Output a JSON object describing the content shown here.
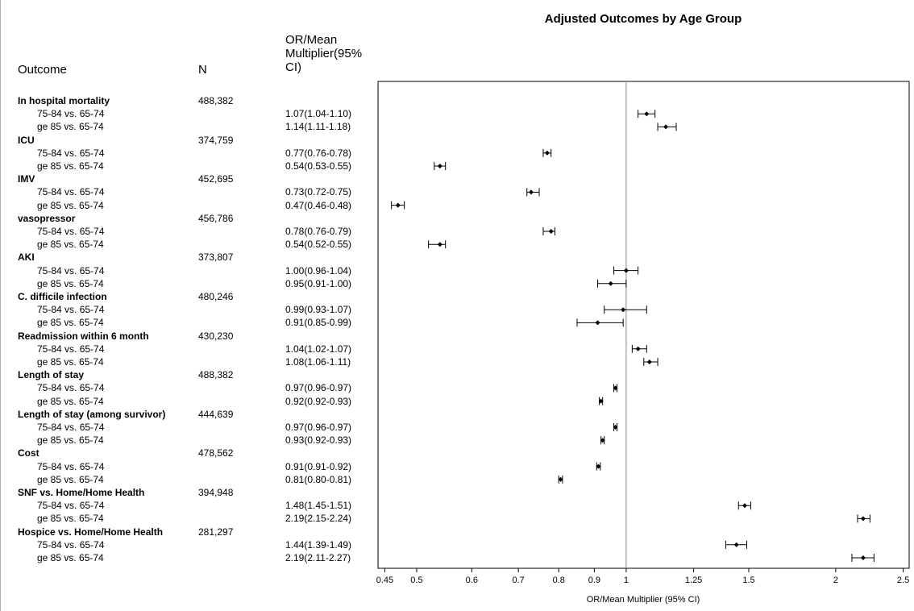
{
  "chart_data": {
    "type": "forest",
    "title": "Adjusted Outcomes by Age Group",
    "columns": {
      "outcome": "Outcome",
      "n": "N",
      "estimate_lines": [
        "OR/Mean",
        "Multiplier(95%",
        "CI)"
      ]
    },
    "xlabel": "OR/Mean Multiplier (95% CI)",
    "x_scale": "log",
    "xlim": [
      0.44,
      2.55
    ],
    "x_ticks": [
      0.45,
      0.5,
      0.6,
      0.7,
      0.8,
      0.9,
      1,
      1.25,
      1.5,
      2,
      2.5
    ],
    "x_tick_labels": [
      "0.45",
      "0.5",
      "0.6",
      "0.7",
      "0.8",
      "0.9",
      "1",
      "1.25",
      "1.5",
      "2",
      "2.5"
    ],
    "reference_line": 1,
    "groups": [
      {
        "name": "In hospital mortality",
        "n": "488,382",
        "rows": [
          {
            "label": "75-84 vs. 65-74",
            "text": "1.07(1.04-1.10)",
            "est": 1.07,
            "lo": 1.04,
            "hi": 1.1
          },
          {
            "label": "ge 85 vs. 65-74",
            "text": "1.14(1.11-1.18)",
            "est": 1.14,
            "lo": 1.11,
            "hi": 1.18
          }
        ]
      },
      {
        "name": "ICU",
        "n": "374,759",
        "rows": [
          {
            "label": "75-84 vs. 65-74",
            "text": "0.77(0.76-0.78)",
            "est": 0.77,
            "lo": 0.76,
            "hi": 0.78
          },
          {
            "label": "ge 85 vs. 65-74",
            "text": "0.54(0.53-0.55)",
            "est": 0.54,
            "lo": 0.53,
            "hi": 0.55
          }
        ]
      },
      {
        "name": "IMV",
        "n": "452,695",
        "rows": [
          {
            "label": "75-84 vs. 65-74",
            "text": "0.73(0.72-0.75)",
            "est": 0.73,
            "lo": 0.72,
            "hi": 0.75
          },
          {
            "label": "ge 85 vs. 65-74",
            "text": "0.47(0.46-0.48)",
            "est": 0.47,
            "lo": 0.46,
            "hi": 0.48
          }
        ]
      },
      {
        "name": "vasopressor",
        "n": "456,786",
        "rows": [
          {
            "label": "75-84 vs. 65-74",
            "text": "0.78(0.76-0.79)",
            "est": 0.78,
            "lo": 0.76,
            "hi": 0.79
          },
          {
            "label": "ge 85 vs. 65-74",
            "text": "0.54(0.52-0.55)",
            "est": 0.54,
            "lo": 0.52,
            "hi": 0.55
          }
        ]
      },
      {
        "name": "AKI",
        "n": "373,807",
        "rows": [
          {
            "label": "75-84 vs. 65-74",
            "text": "1.00(0.96-1.04)",
            "est": 1.0,
            "lo": 0.96,
            "hi": 1.04
          },
          {
            "label": "ge 85 vs. 65-74",
            "text": "0.95(0.91-1.00)",
            "est": 0.95,
            "lo": 0.91,
            "hi": 1.0
          }
        ]
      },
      {
        "name": "C. difficile infection",
        "n": "480,246",
        "rows": [
          {
            "label": "75-84 vs. 65-74",
            "text": "0.99(0.93-1.07)",
            "est": 0.99,
            "lo": 0.93,
            "hi": 1.07
          },
          {
            "label": "ge 85 vs. 65-74",
            "text": "0.91(0.85-0.99)",
            "est": 0.91,
            "lo": 0.85,
            "hi": 0.99
          }
        ]
      },
      {
        "name": "Readmission within 6 month",
        "n": "430,230",
        "rows": [
          {
            "label": "75-84 vs. 65-74",
            "text": "1.04(1.02-1.07)",
            "est": 1.04,
            "lo": 1.02,
            "hi": 1.07
          },
          {
            "label": "ge 85 vs. 65-74",
            "text": "1.08(1.06-1.11)",
            "est": 1.08,
            "lo": 1.06,
            "hi": 1.11
          }
        ]
      },
      {
        "name": "Length of stay",
        "n": "488,382",
        "rows": [
          {
            "label": "75-84 vs. 65-74",
            "text": "0.97(0.96-0.97)",
            "est": 0.965,
            "lo": 0.96,
            "hi": 0.97
          },
          {
            "label": "ge 85 vs. 65-74",
            "text": "0.92(0.92-0.93)",
            "est": 0.92,
            "lo": 0.915,
            "hi": 0.925
          }
        ]
      },
      {
        "name": "Length of stay (among survivor)",
        "n": "444,639",
        "rows": [
          {
            "label": "75-84 vs. 65-74",
            "text": "0.97(0.96-0.97)",
            "est": 0.965,
            "lo": 0.96,
            "hi": 0.97
          },
          {
            "label": "ge 85 vs. 65-74",
            "text": "0.93(0.92-0.93)",
            "est": 0.925,
            "lo": 0.92,
            "hi": 0.93
          }
        ]
      },
      {
        "name": "Cost",
        "n": "478,562",
        "rows": [
          {
            "label": "75-84 vs. 65-74",
            "text": "0.91(0.91-0.92)",
            "est": 0.912,
            "lo": 0.907,
            "hi": 0.918
          },
          {
            "label": "ge 85 vs. 65-74",
            "text": "0.81(0.80-0.81)",
            "est": 0.805,
            "lo": 0.8,
            "hi": 0.81
          }
        ]
      },
      {
        "name": "SNF vs. Home/Home Health",
        "n": "394,948",
        "rows": [
          {
            "label": "75-84 vs. 65-74",
            "text": "1.48(1.45-1.51)",
            "est": 1.48,
            "lo": 1.45,
            "hi": 1.51
          },
          {
            "label": "ge 85 vs. 65-74",
            "text": "2.19(2.15-2.24)",
            "est": 2.19,
            "lo": 2.15,
            "hi": 2.24
          }
        ]
      },
      {
        "name": "Hospice vs. Home/Home Health",
        "n": "281,297",
        "rows": [
          {
            "label": "75-84 vs. 65-74",
            "text": "1.44(1.39-1.49)",
            "est": 1.44,
            "lo": 1.39,
            "hi": 1.49
          },
          {
            "label": "ge 85 vs. 65-74",
            "text": "2.19(2.11-2.27)",
            "est": 2.19,
            "lo": 2.11,
            "hi": 2.27
          }
        ]
      }
    ]
  }
}
